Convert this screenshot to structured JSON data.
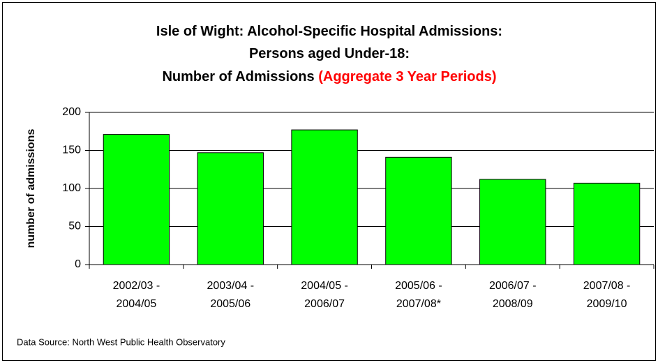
{
  "chart_data": {
    "type": "bar",
    "title": [
      "Isle of Wight: Alcohol-Specific Hospital Admissions:",
      "Persons aged Under-18:",
      "Number of Admissions"
    ],
    "title_highlight": "(Aggregate 3 Year Periods)",
    "y_label": "number of admissions",
    "source": "Data Source: North West Public Health Observatory",
    "categories": [
      [
        "2002/03 -",
        "2004/05"
      ],
      [
        "2003/04 -",
        "2005/06"
      ],
      [
        "2004/05 -",
        "2006/07"
      ],
      [
        "2005/06 -",
        "2007/08*"
      ],
      [
        "2006/07 -",
        "2008/09"
      ],
      [
        "2007/08 -",
        "2009/10"
      ]
    ],
    "values": [
      171,
      147,
      177,
      141,
      112,
      107
    ],
    "color": "#00ff00",
    "ylim": [
      0,
      200
    ],
    "yticks": [
      0,
      50,
      100,
      150,
      200
    ],
    "grid": true
  }
}
